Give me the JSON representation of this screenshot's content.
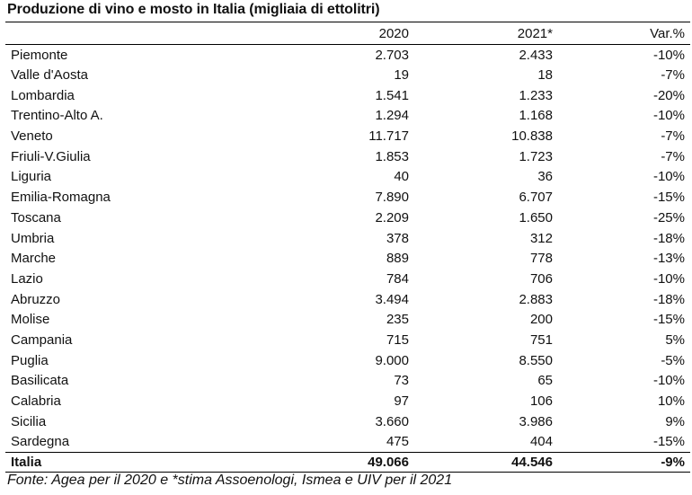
{
  "title": "Produzione di vino e mosto in Italia (migliaia di ettolitri)",
  "columns": [
    "",
    "2020",
    "2021*",
    "Var.%"
  ],
  "rows": [
    [
      "Piemonte",
      "2.703",
      "2.433",
      "-10%"
    ],
    [
      "Valle d'Aosta",
      "19",
      "18",
      "-7%"
    ],
    [
      "Lombardia",
      "1.541",
      "1.233",
      "-20%"
    ],
    [
      "Trentino-Alto A.",
      "1.294",
      "1.168",
      "-10%"
    ],
    [
      "Veneto",
      "11.717",
      "10.838",
      "-7%"
    ],
    [
      "Friuli-V.Giulia",
      "1.853",
      "1.723",
      "-7%"
    ],
    [
      "Liguria",
      "40",
      "36",
      "-10%"
    ],
    [
      "Emilia-Romagna",
      "7.890",
      "6.707",
      "-15%"
    ],
    [
      "Toscana",
      "2.209",
      "1.650",
      "-25%"
    ],
    [
      "Umbria",
      "378",
      "312",
      "-18%"
    ],
    [
      "Marche",
      "889",
      "778",
      "-13%"
    ],
    [
      "Lazio",
      "784",
      "706",
      "-10%"
    ],
    [
      "Abruzzo",
      "3.494",
      "2.883",
      "-18%"
    ],
    [
      "Molise",
      "235",
      "200",
      "-15%"
    ],
    [
      "Campania",
      "715",
      "751",
      "5%"
    ],
    [
      "Puglia",
      "9.000",
      "8.550",
      "-5%"
    ],
    [
      "Basilicata",
      "73",
      "65",
      "-10%"
    ],
    [
      "Calabria",
      "97",
      "106",
      "10%"
    ],
    [
      "Sicilia",
      "3.660",
      "3.986",
      "9%"
    ],
    [
      "Sardegna",
      "475",
      "404",
      "-15%"
    ]
  ],
  "total": [
    "Italia",
    "49.066",
    "44.546",
    "-9%"
  ],
  "source": "Fonte: Agea per il 2020 e *stima Assoenologi, Ismea e UIV per il 2021"
}
